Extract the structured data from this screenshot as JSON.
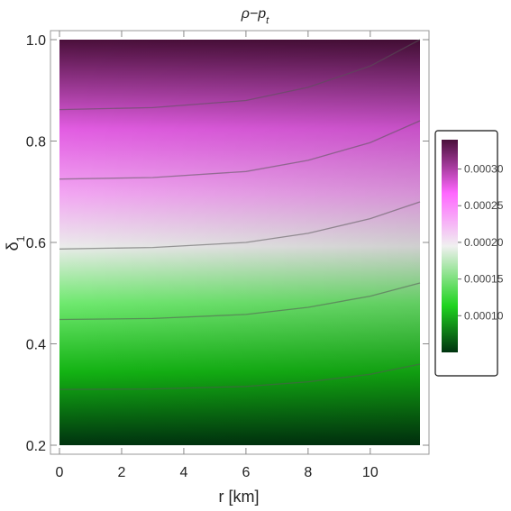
{
  "chart_data": {
    "type": "heatmap",
    "subtype": "density-contour",
    "title": "ρ−p",
    "title_subscript": "t",
    "xlabel": "r [km]",
    "ylabel": "δ",
    "ylabel_subscript": "1",
    "xlim": [
      0,
      11.6
    ],
    "ylim": [
      0.2,
      1.0
    ],
    "x_ticks": [
      0,
      2,
      4,
      6,
      8,
      10
    ],
    "y_ticks": [
      0.2,
      0.4,
      0.6,
      0.8,
      1.0
    ],
    "x_tick_labels": [
      "0",
      "2",
      "4",
      "6",
      "8",
      "10"
    ],
    "y_tick_labels": [
      "0.2",
      "0.4",
      "0.6",
      "0.8",
      "1.0"
    ],
    "contours": [
      {
        "points": [
          [
            0,
            0.31
          ],
          [
            3,
            0.311
          ],
          [
            6,
            0.316
          ],
          [
            8,
            0.325
          ],
          [
            10,
            0.34
          ],
          [
            11.6,
            0.36
          ]
        ]
      },
      {
        "points": [
          [
            0,
            0.448
          ],
          [
            3,
            0.45
          ],
          [
            6,
            0.458
          ],
          [
            8,
            0.472
          ],
          [
            10,
            0.494
          ],
          [
            11.6,
            0.52
          ]
        ]
      },
      {
        "points": [
          [
            0,
            0.587
          ],
          [
            3,
            0.59
          ],
          [
            6,
            0.6
          ],
          [
            8,
            0.618
          ],
          [
            10,
            0.647
          ],
          [
            11.6,
            0.68
          ]
        ]
      },
      {
        "points": [
          [
            0,
            0.725
          ],
          [
            3,
            0.728
          ],
          [
            6,
            0.74
          ],
          [
            8,
            0.762
          ],
          [
            10,
            0.797
          ],
          [
            11.6,
            0.84
          ]
        ]
      },
      {
        "points": [
          [
            0,
            0.862
          ],
          [
            3,
            0.866
          ],
          [
            6,
            0.88
          ],
          [
            8,
            0.906
          ],
          [
            10,
            0.948
          ],
          [
            11.6,
            1.0
          ]
        ]
      }
    ],
    "colorbar": {
      "min": 5e-05,
      "max": 0.00034,
      "ticks": [
        0.0001,
        0.00015,
        0.0002,
        0.00025,
        0.0003
      ],
      "tick_labels": [
        "0.00010",
        "0.00015",
        "0.00020",
        "0.00025",
        "0.00030"
      ],
      "colors": [
        "#00330f",
        "#1fd41f",
        "#f0f0f0",
        "#ff66ff",
        "#4a0f3a"
      ]
    },
    "grid": false,
    "legend_position": "right"
  }
}
